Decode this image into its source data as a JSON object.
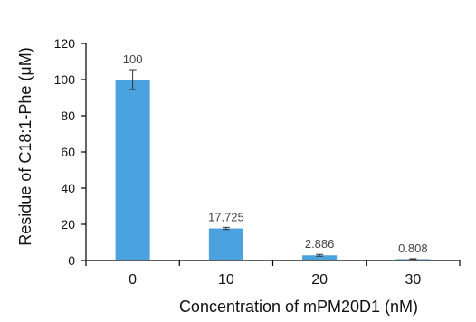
{
  "chart_data": {
    "type": "bar",
    "title": "",
    "categories": [
      "0",
      "10",
      "20",
      "30"
    ],
    "values": [
      100,
      17.725,
      2.886,
      0.808
    ],
    "data_labels": [
      "100",
      "17.725",
      "2.886",
      "0.808"
    ],
    "error": [
      5.5,
      0.6,
      0.5,
      0.2
    ],
    "xlabel": "Concentration of mPM20D1 (nM)",
    "ylabel": "Residue of C18:1-Phe (μM)",
    "ylim": [
      0,
      120
    ],
    "yticks": [
      "0",
      "20",
      "40",
      "60",
      "80",
      "100",
      "120"
    ],
    "grid": false,
    "legend": "none",
    "bar_color": "#4aa3df",
    "error_color": "#333333"
  }
}
